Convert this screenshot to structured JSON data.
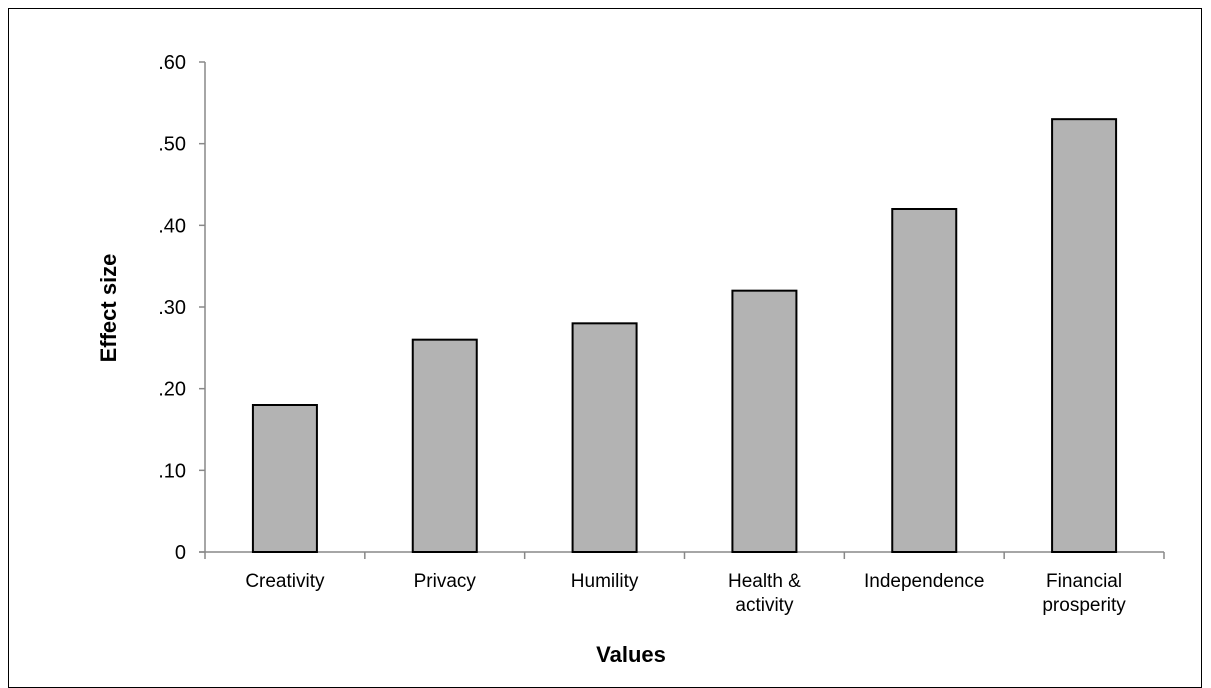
{
  "chart_data": {
    "type": "bar",
    "categories": [
      [
        "Creativity"
      ],
      [
        "Privacy"
      ],
      [
        "Humility"
      ],
      [
        "Health &",
        "activity"
      ],
      [
        "Independence"
      ],
      [
        "Financial",
        "prosperity"
      ]
    ],
    "values": [
      0.18,
      0.26,
      0.28,
      0.32,
      0.42,
      0.53
    ],
    "ylim": [
      0,
      0.6
    ],
    "yticks": [
      {
        "value": 0,
        "label": "0"
      },
      {
        "value": 0.1,
        "label": ".10"
      },
      {
        "value": 0.2,
        "label": ".20"
      },
      {
        "value": 0.3,
        "label": ".30"
      },
      {
        "value": 0.4,
        "label": ".40"
      },
      {
        "value": 0.5,
        "label": ".50"
      },
      {
        "value": 0.6,
        "label": ".60"
      }
    ],
    "xlabel": "Values",
    "ylabel": "Effect size",
    "title": "",
    "grid": false,
    "bar_color": "#b3b3b3",
    "bar_edge_color": "#000000"
  }
}
